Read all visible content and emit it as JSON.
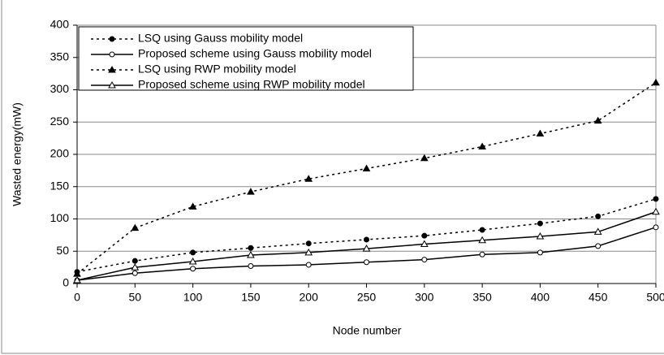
{
  "chart_data": {
    "type": "line",
    "xlabel": "Node number",
    "ylabel": "Wasted energy(mW)",
    "x": [
      0,
      50,
      100,
      150,
      200,
      250,
      300,
      350,
      400,
      450,
      500
    ],
    "xlim": [
      0,
      500
    ],
    "xticks": [
      0,
      50,
      100,
      150,
      200,
      250,
      300,
      350,
      400,
      450,
      500
    ],
    "ylim": [
      0,
      400
    ],
    "yticks": [
      0,
      50,
      100,
      150,
      200,
      250,
      300,
      350,
      400
    ],
    "grid": true,
    "legend": "upper left",
    "series": [
      {
        "name": "LSQ using Gauss mobility model",
        "color": "#000000",
        "dash": "dotted",
        "marker": "filled-circle",
        "values": [
          18,
          35,
          48,
          55,
          62,
          68,
          74,
          83,
          93,
          104,
          131
        ]
      },
      {
        "name": "Proposed scheme using Gauss mobility model",
        "color": "#000000",
        "dash": "solid",
        "marker": "open-circle",
        "values": [
          5,
          16,
          23,
          27,
          29,
          33,
          37,
          45,
          48,
          58,
          87
        ]
      },
      {
        "name": "LSQ using RWP mobility model",
        "color": "#000000",
        "dash": "dotted",
        "marker": "filled-triangle",
        "values": [
          15,
          86,
          119,
          142,
          162,
          178,
          194,
          212,
          232,
          252,
          311
        ]
      },
      {
        "name": "Proposed scheme using RWP mobility model",
        "color": "#000000",
        "dash": "solid",
        "marker": "open-triangle",
        "values": [
          5,
          25,
          34,
          44,
          48,
          54,
          61,
          67,
          73,
          80,
          111
        ]
      }
    ]
  }
}
